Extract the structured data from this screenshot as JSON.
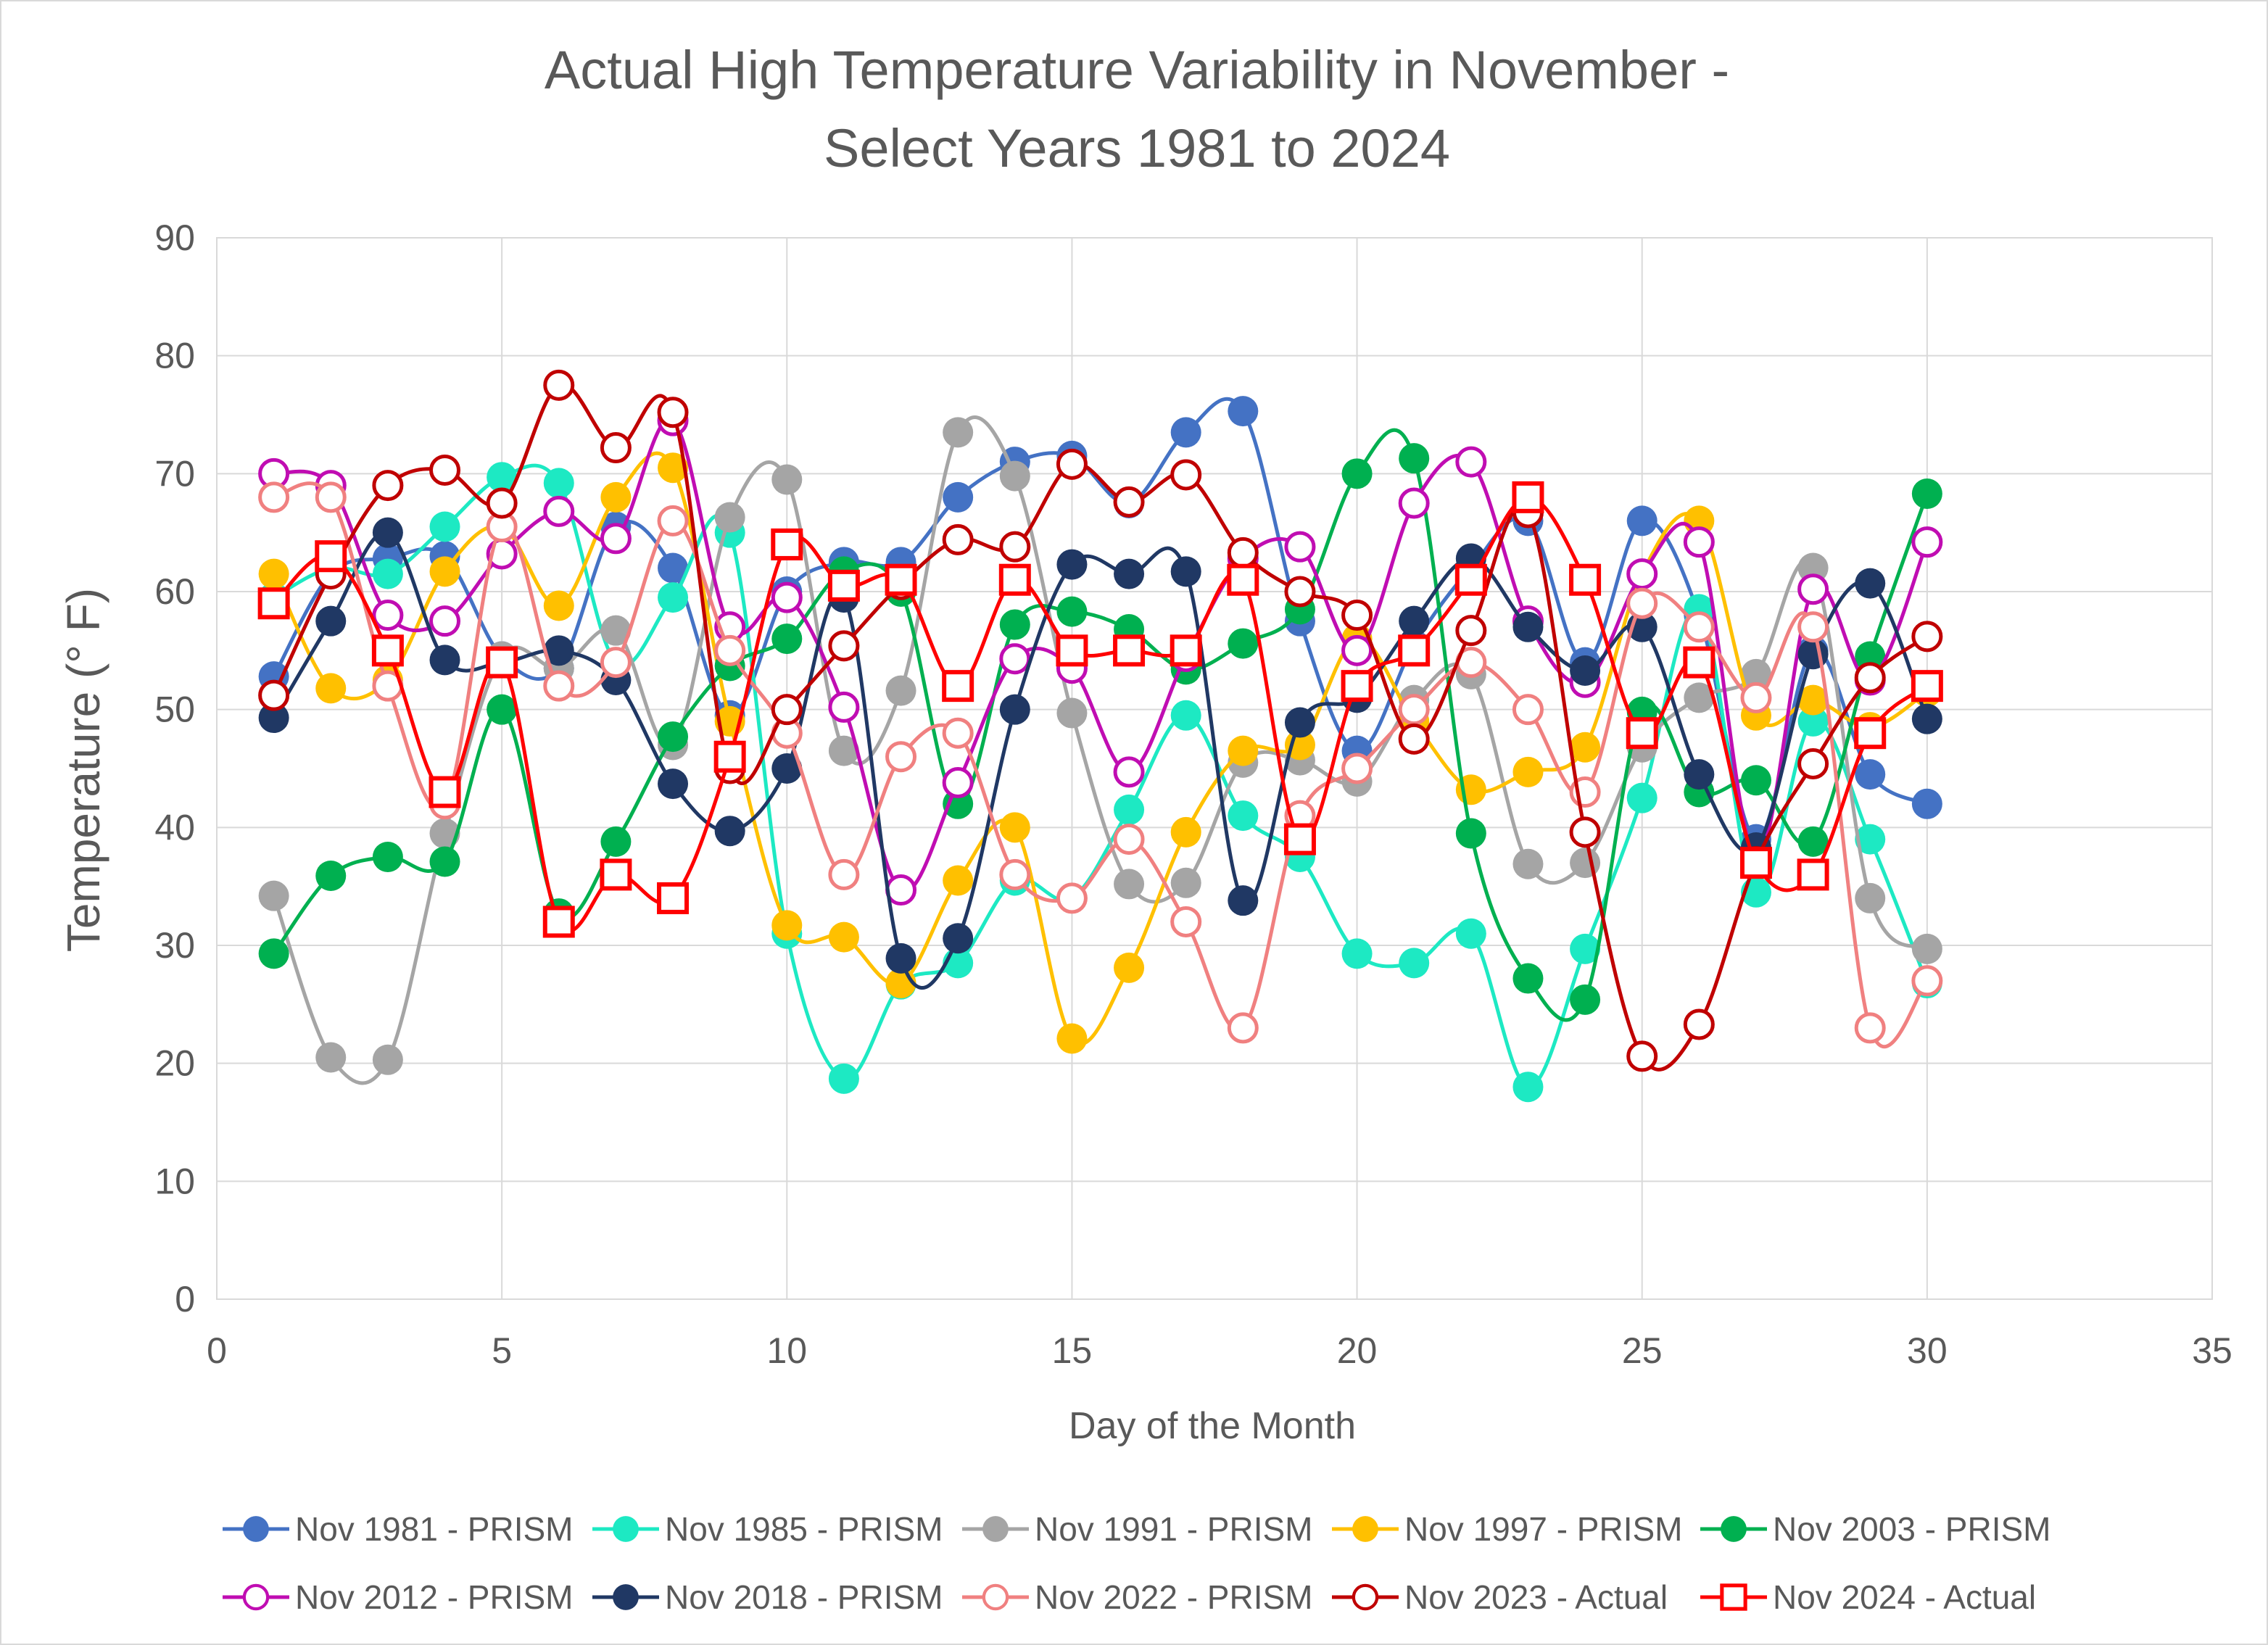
{
  "chart_data": {
    "type": "scatter",
    "title": [
      "Actual High Temperature Variability in November -",
      "Select Years 1981 to 2024"
    ],
    "xlabel": "Day of the Month",
    "ylabel": "Temperature (° F)",
    "xlim": [
      0,
      35
    ],
    "ylim": [
      0,
      90
    ],
    "x_ticks": [
      0,
      5,
      10,
      15,
      20,
      25,
      30,
      35
    ],
    "y_ticks": [
      0,
      10,
      20,
      30,
      40,
      50,
      60,
      70,
      80,
      90
    ],
    "grid": true,
    "legend_position": "bottom",
    "x": [
      1,
      2,
      3,
      4,
      5,
      6,
      7,
      8,
      9,
      10,
      11,
      12,
      13,
      14,
      15,
      16,
      17,
      18,
      19,
      20,
      21,
      22,
      23,
      24,
      25,
      26,
      27,
      28,
      29,
      30
    ],
    "series": [
      {
        "name": "Nov 1981 - PRISM",
        "color": "#4472C4",
        "marker": "circle-filled",
        "values": [
          52.8,
          61.5,
          62.8,
          63.0,
          54.5,
          53.5,
          65.5,
          62.0,
          49.5,
          60.0,
          62.5,
          62.5,
          68.0,
          71.0,
          71.5,
          67.5,
          73.5,
          75.3,
          57.5,
          46.5,
          55.5,
          62.0,
          66.0,
          54.0,
          66.0,
          58.0,
          39.0,
          55.0,
          44.5,
          42.0
        ]
      },
      {
        "name": "Nov 1985 - PRISM",
        "color": "#1DE9C3",
        "marker": "circle-filled",
        "values": [
          59.5,
          62.0,
          61.5,
          65.5,
          69.7,
          69.2,
          54.0,
          59.5,
          65.0,
          31.0,
          18.7,
          26.7,
          28.5,
          35.5,
          34.0,
          41.5,
          49.5,
          41.0,
          37.5,
          29.3,
          28.5,
          31.0,
          18.0,
          29.7,
          42.5,
          58.5,
          34.5,
          49.0,
          39.0,
          26.8
        ]
      },
      {
        "name": "Nov 1991 - PRISM",
        "color": "#A5A5A5",
        "marker": "circle-filled",
        "values": [
          34.2,
          20.5,
          20.3,
          39.5,
          54.5,
          53.5,
          56.7,
          47.0,
          66.3,
          69.5,
          46.5,
          51.6,
          73.5,
          69.8,
          49.7,
          35.2,
          35.3,
          45.5,
          45.7,
          43.9,
          50.8,
          53.0,
          36.9,
          37.0,
          46.8,
          51.0,
          53.0,
          62.0,
          34.0,
          29.7
        ]
      },
      {
        "name": "Nov 1997 - PRISM",
        "color": "#FFC000",
        "marker": "circle-filled",
        "values": [
          61.5,
          51.8,
          52.5,
          61.7,
          65.5,
          58.8,
          68.0,
          70.5,
          49.0,
          31.7,
          30.7,
          26.8,
          35.5,
          40.0,
          22.1,
          28.1,
          39.6,
          46.5,
          47.0,
          56.0,
          49.0,
          43.2,
          44.7,
          46.8,
          61.5,
          66.0,
          49.5,
          50.8,
          48.5,
          51.5
        ]
      },
      {
        "name": "Nov 2003 - PRISM",
        "color": "#00B050",
        "marker": "circle-filled",
        "values": [
          29.3,
          35.9,
          37.5,
          37.1,
          50.0,
          32.7,
          38.8,
          47.7,
          53.7,
          56.0,
          61.7,
          60.0,
          42.0,
          57.2,
          58.3,
          56.8,
          53.4,
          55.6,
          58.5,
          70.0,
          71.3,
          39.5,
          27.2,
          25.4,
          49.8,
          43.0,
          44.0,
          38.8,
          54.5,
          68.3
        ]
      },
      {
        "name": "Nov 2012 - PRISM",
        "color": "#C00DB2",
        "marker": "circle-open",
        "values": [
          70.0,
          69.0,
          58.0,
          57.5,
          63.2,
          66.8,
          64.5,
          74.5,
          57.0,
          59.5,
          50.2,
          34.7,
          43.8,
          54.3,
          53.5,
          44.7,
          54.5,
          62.8,
          63.8,
          55.0,
          67.5,
          71.0,
          57.5,
          52.3,
          61.5,
          64.2,
          37.5,
          60.2,
          52.5,
          64.2
        ]
      },
      {
        "name": "Nov 2018 - PRISM",
        "color": "#203864",
        "marker": "circle-filled",
        "values": [
          49.3,
          57.5,
          65.0,
          54.2,
          54.0,
          55.0,
          52.5,
          43.7,
          39.7,
          45.0,
          59.5,
          28.9,
          30.6,
          50.0,
          62.3,
          61.5,
          61.7,
          33.8,
          48.9,
          51.0,
          57.5,
          62.8,
          57.0,
          53.3,
          57.0,
          44.5,
          38.3,
          54.7,
          60.7,
          49.2
        ]
      },
      {
        "name": "Nov 2022 - PRISM",
        "color": "#F08080",
        "marker": "circle-open",
        "values": [
          68.0,
          68.0,
          52.0,
          42.0,
          65.5,
          52.0,
          54.0,
          66.0,
          55.0,
          48.0,
          36.0,
          46.0,
          48.0,
          36.0,
          34.0,
          39.0,
          32.0,
          23.0,
          41.0,
          45.0,
          50.0,
          54.0,
          50.0,
          43.0,
          59.0,
          57.0,
          51.0,
          57.0,
          23.0,
          27.0
        ]
      },
      {
        "name": "Nov 2023 - Actual",
        "color": "#C00000",
        "marker": "circle-open",
        "values": [
          51.2,
          61.5,
          69.0,
          70.3,
          67.5,
          77.5,
          72.2,
          75.2,
          45.0,
          50.0,
          55.4,
          60.6,
          64.4,
          63.8,
          70.8,
          67.6,
          69.9,
          63.3,
          60.0,
          58.0,
          47.5,
          56.7,
          66.7,
          39.6,
          20.6,
          23.3,
          37.1,
          45.4,
          52.7,
          56.2
        ]
      },
      {
        "name": "Nov 2024 - Actual",
        "color": "#FF0000",
        "marker": "square-open",
        "values": [
          59.0,
          63.0,
          55.0,
          43.0,
          54.0,
          32.0,
          36.0,
          34.0,
          46.0,
          64.0,
          60.5,
          61.0,
          52.0,
          61.0,
          55.0,
          55.0,
          55.0,
          61.0,
          39.0,
          52.0,
          55.0,
          61.0,
          68.0,
          61.0,
          48.0,
          54.0,
          37.0,
          36.0,
          48.0,
          52.0
        ]
      }
    ]
  }
}
